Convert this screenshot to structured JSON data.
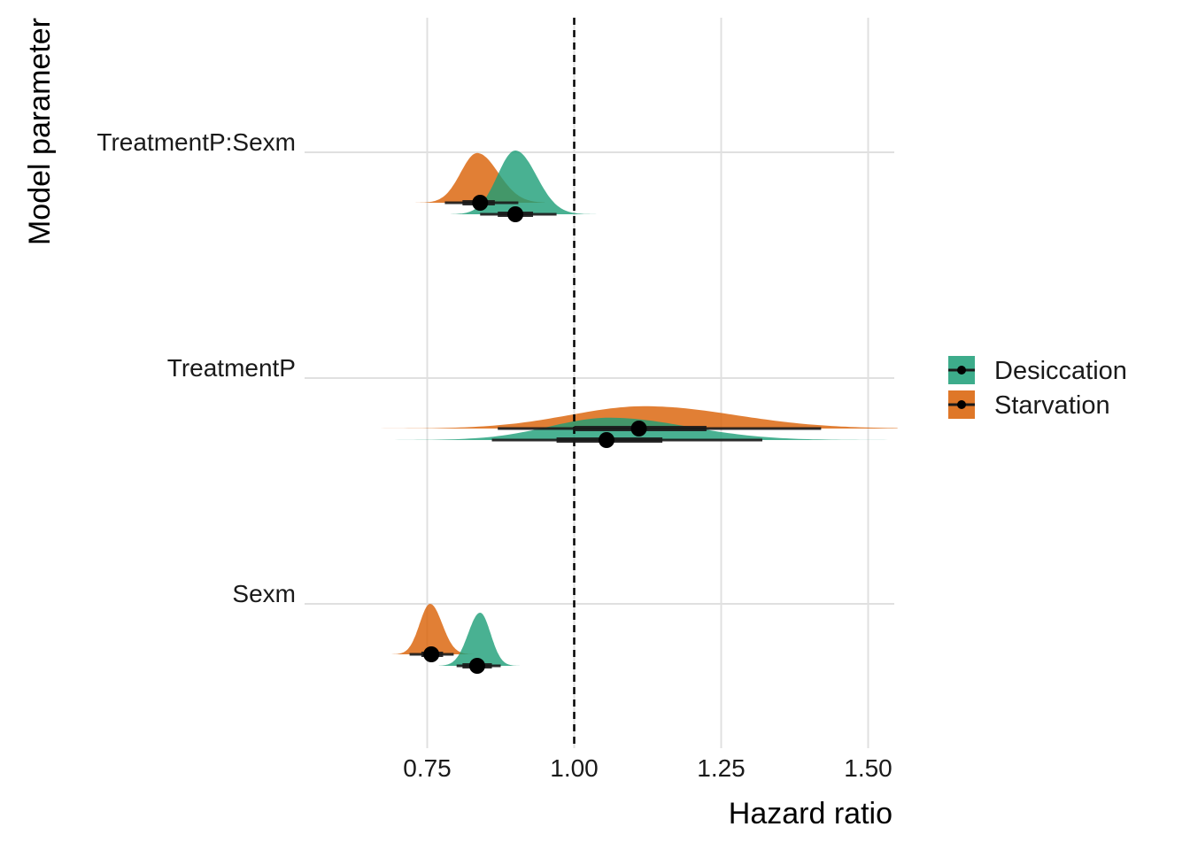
{
  "chart_data": {
    "type": "density-interval",
    "xlabel": "Hazard ratio",
    "ylabel": "Model parameter",
    "xlim": [
      0.5,
      1.55
    ],
    "x_ticks": [
      "0.75",
      "1.00",
      "1.25",
      "1.50"
    ],
    "x_tick_values": [
      0.75,
      1.0,
      1.25,
      1.5
    ],
    "reference_line": 1.0,
    "reference_line_style": "dashed",
    "grid": true,
    "legend_position": "right",
    "categories": [
      "TreatmentP:Sexm",
      "TreatmentP",
      "Sexm"
    ],
    "series": [
      {
        "name": "Desiccation",
        "color": "#1b9e77",
        "points": [
          {
            "category": "TreatmentP:Sexm",
            "median": 0.9,
            "inner": [
              0.87,
              0.93
            ],
            "outer": [
              0.84,
              0.97
            ],
            "mode": 0.9,
            "range": [
              0.79,
              1.04
            ]
          },
          {
            "category": "TreatmentP",
            "median": 1.055,
            "inner": [
              0.97,
              1.15
            ],
            "outer": [
              0.86,
              1.32
            ],
            "mode": 1.06,
            "range": [
              0.59,
              1.55
            ]
          },
          {
            "category": "Sexm",
            "median": 0.835,
            "inner": [
              0.81,
              0.86
            ],
            "outer": [
              0.8,
              0.875
            ],
            "mode": 0.84,
            "range": [
              0.77,
              0.91
            ]
          }
        ]
      },
      {
        "name": "Starvation",
        "color": "#d95f02",
        "points": [
          {
            "category": "TreatmentP:Sexm",
            "median": 0.84,
            "inner": [
              0.81,
              0.865
            ],
            "outer": [
              0.78,
              0.905
            ],
            "mode": 0.835,
            "range": [
              0.72,
              0.95
            ]
          },
          {
            "category": "TreatmentP",
            "median": 1.11,
            "inner": [
              1.0,
              1.225
            ],
            "outer": [
              0.87,
              1.42
            ],
            "mode": 1.12,
            "range": [
              0.59,
              1.55
            ]
          },
          {
            "category": "Sexm",
            "median": 0.757,
            "inner": [
              0.74,
              0.777
            ],
            "outer": [
              0.72,
              0.795
            ],
            "mode": 0.755,
            "range": [
              0.69,
              0.83
            ]
          }
        ]
      }
    ]
  }
}
